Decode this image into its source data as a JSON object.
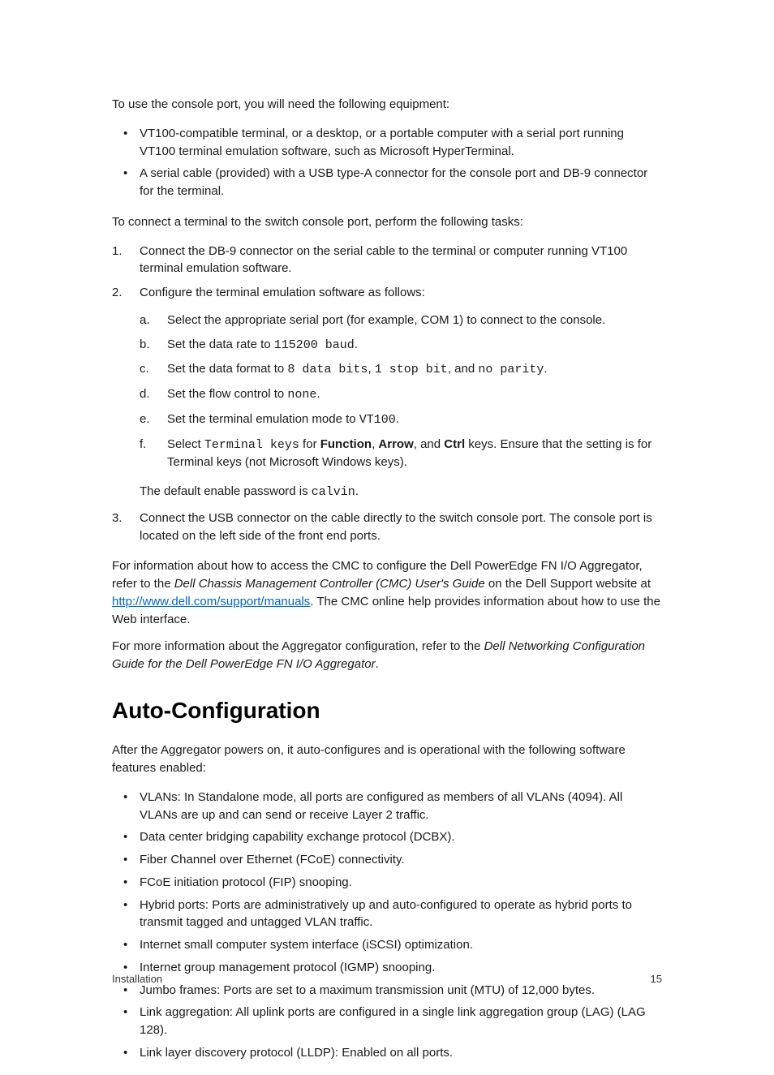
{
  "intro": "To use the console port, you will need the following equipment:",
  "equipment": [
    "VT100-compatible terminal, or a desktop, or a portable computer with a serial port running VT100 terminal emulation software, such as Microsoft HyperTerminal.",
    "A serial cable (provided) with a USB type-A connector for the console port and DB-9 connector for the terminal."
  ],
  "connectIntro": "To connect a terminal to the switch console port, perform the following tasks:",
  "steps": {
    "s1": "Connect the DB-9 connector on the serial cable to the terminal or computer running VT100 terminal emulation software.",
    "s2": "Configure the terminal emulation software as follows:",
    "s2a": "Select the appropriate serial port (for example, COM 1) to connect to the console.",
    "s2b_pre": "Set the data rate to ",
    "s2b_mono": "115200 baud",
    "s2b_post": ".",
    "s2c_pre": "Set the data format to ",
    "s2c_m1": "8 data bits",
    "s2c_sep1": ", ",
    "s2c_m2": "1 stop bit",
    "s2c_sep2": ", and ",
    "s2c_m3": "no parity",
    "s2c_post": ".",
    "s2d_pre": "Set the flow control to ",
    "s2d_mono": "none",
    "s2d_post": ".",
    "s2e_pre": "Set the terminal emulation mode to ",
    "s2e_mono": "VT100",
    "s2e_post": ".",
    "s2f_pre": "Select ",
    "s2f_m1": "Terminal keys",
    "s2f_mid1": " for ",
    "s2f_b1": "Function",
    "s2f_sep1": ", ",
    "s2f_b2": "Arrow",
    "s2f_sep2": ", and ",
    "s2f_b3": "Ctrl",
    "s2f_post": " keys. Ensure that the setting is for Terminal keys (not Microsoft Windows keys).",
    "default_pre": "The default enable password is ",
    "default_mono": "calvin",
    "default_post": ".",
    "s3": "Connect the USB connector on the cable directly to the switch console port. The console port is located on the left side of the front end ports."
  },
  "cmc": {
    "p1_pre": "For information about how to access the CMC to configure the Dell PowerEdge FN I/O Aggregator, refer to the ",
    "p1_em": "Dell Chassis Management Controller (CMC) User's Guide",
    "p1_mid": " on the Dell Support website at ",
    "p1_link": "http://www.dell.com/support/manuals",
    "p1_post": ". The CMC online help provides information about how to use the Web interface.",
    "p2_pre": "For more information about the Aggregator configuration, refer to the ",
    "p2_em": "Dell Networking Configuration Guide for the Dell PowerEdge FN I/O Aggregator",
    "p2_post": "."
  },
  "heading": "Auto-Configuration",
  "autoIntro": "After the Aggregator powers on, it auto-configures and is operational with the following software features enabled:",
  "features": [
    "VLANs: In Standalone mode, all ports are configured as members of all VLANs (4094). All VLANs are up and can send or receive Layer 2 traffic.",
    "Data center bridging capability exchange protocol (DCBX).",
    "Fiber Channel over Ethernet (FCoE) connectivity.",
    "FCoE initiation protocol (FIP) snooping.",
    "Hybrid ports: Ports are administratively up and auto-configured to operate as hybrid ports to transmit tagged and untagged VLAN traffic.",
    "Internet small computer system interface (iSCSI) optimization.",
    "Internet group management protocol (IGMP) snooping.",
    "Jumbo frames: Ports are set to a maximum transmission unit (MTU) of 12,000 bytes.",
    "Link aggregation: All uplink ports are configured in a single link aggregation group (LAG) (LAG 128).",
    "Link layer discovery protocol (LLDP): Enabled on all ports."
  ],
  "footer": {
    "section": "Installation",
    "page": "15"
  },
  "linkColor": "#0066cc"
}
